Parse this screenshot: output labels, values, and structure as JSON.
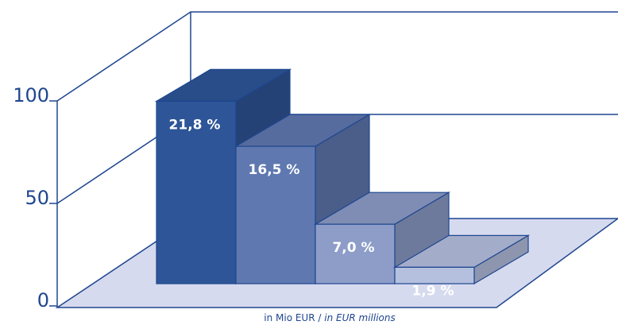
{
  "chart_data": {
    "type": "bar3d",
    "categories": [
      null,
      null,
      null,
      null
    ],
    "values": [
      89,
      67,
      29,
      8
    ],
    "bar_labels": [
      "21,8 %",
      "16,5 %",
      "7,0 %",
      "1,9 %"
    ],
    "colors": [
      "#2e5597",
      "#5f78b0",
      "#8d9dc8",
      "#b5c0df"
    ],
    "ylim": [
      0,
      100
    ],
    "yticks": [
      0,
      50,
      100
    ],
    "x_label": {
      "de": "in Mio EUR /",
      "en": "in EUR millions"
    }
  }
}
